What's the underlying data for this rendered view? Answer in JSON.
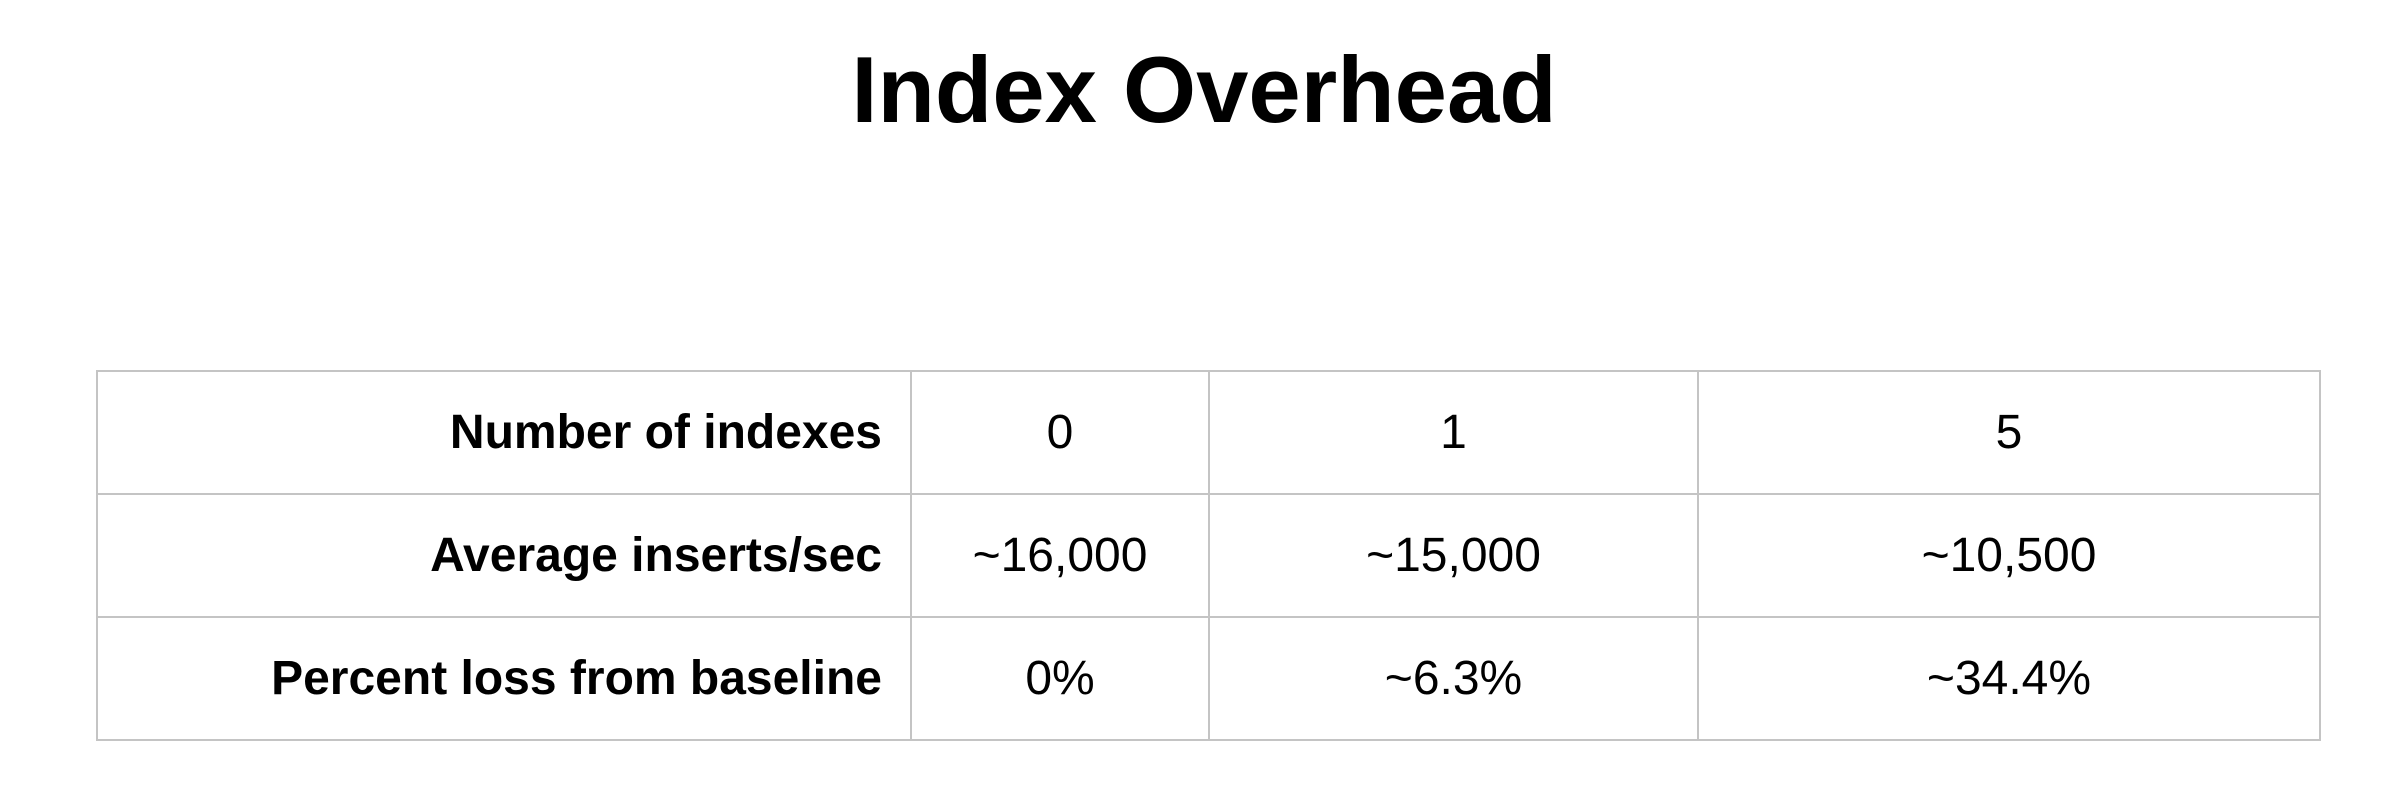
{
  "slide": {
    "title": "Index Overhead"
  },
  "table": {
    "rows": [
      {
        "label": "Number of indexes",
        "cells": [
          "0",
          "1",
          "5"
        ]
      },
      {
        "label": "Average inserts/sec",
        "cells": [
          "~16,000",
          "~15,000",
          "~10,500"
        ]
      },
      {
        "label": "Percent loss from baseline",
        "cells": [
          "0%",
          "~6.3%",
          "~34.4%"
        ]
      }
    ]
  }
}
